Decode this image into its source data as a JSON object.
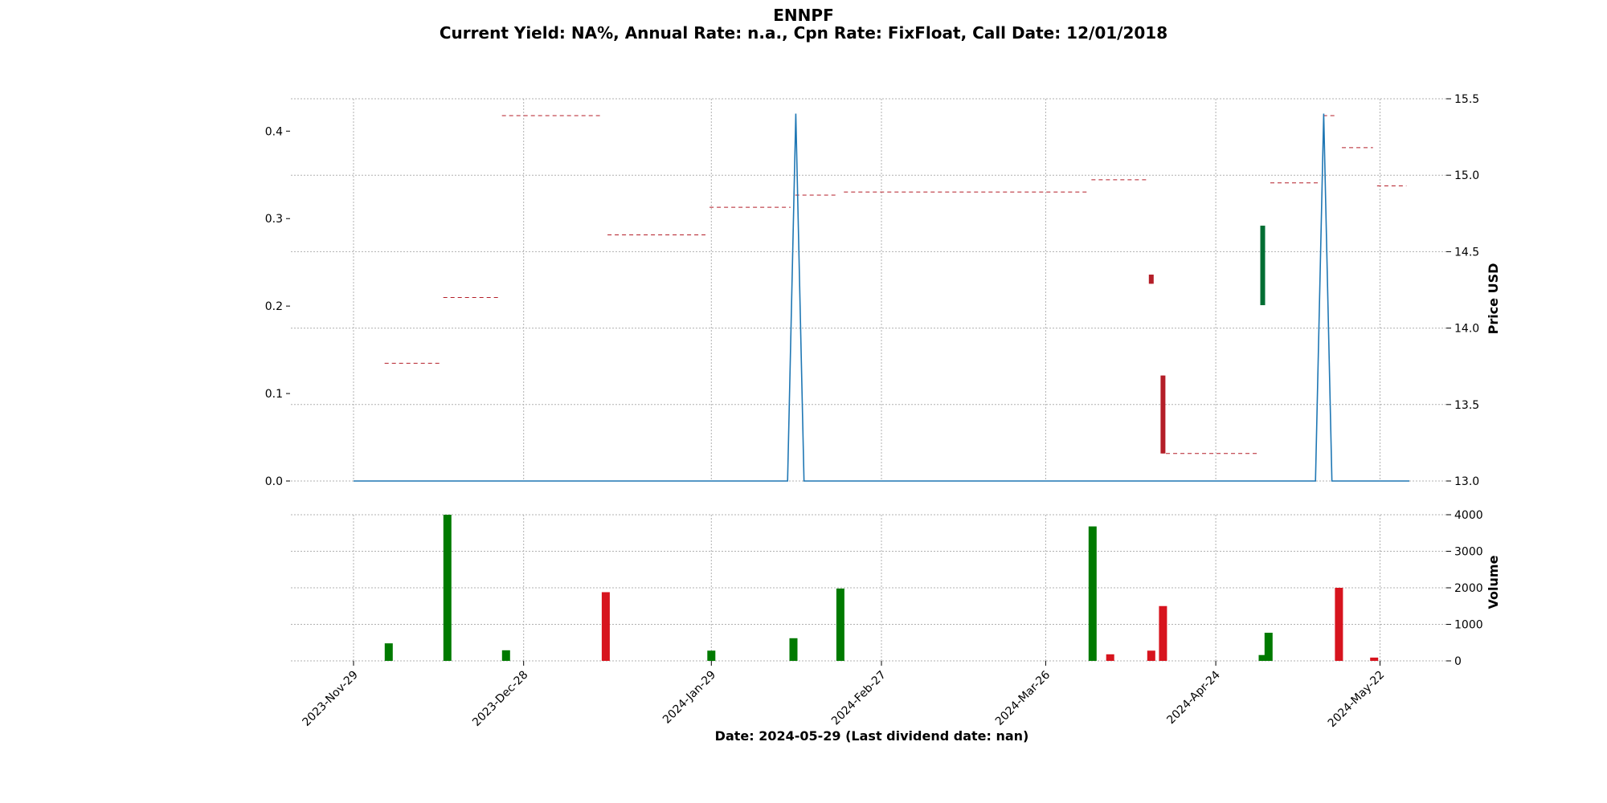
{
  "chart_data": {
    "type": "candlestick",
    "title": "ENNPF",
    "subtitle": "Current Yield: NA%, Annual Rate: n.a., Cpn Rate: FixFloat, Call Date: 12/01/2018",
    "xlabel": "Date: 2024-05-29   (Last dividend date: nan)",
    "x_ticks": [
      {
        "day": 0,
        "label": "2023-Nov-29"
      },
      {
        "day": 29,
        "label": "2023-Dec-28"
      },
      {
        "day": 61,
        "label": "2024-Jan-29"
      },
      {
        "day": 90,
        "label": "2024-Feb-27"
      },
      {
        "day": 118,
        "label": "2024-Mar-26"
      },
      {
        "day": 147,
        "label": "2024-Apr-24"
      },
      {
        "day": 175,
        "label": "2024-May-22"
      }
    ],
    "x_range": [
      -10.5,
      189
    ],
    "price_axis": {
      "label": "Price USD",
      "range": [
        13.0,
        15.5
      ],
      "ticks": [
        13.0,
        13.5,
        14.0,
        14.5,
        15.0,
        15.5
      ]
    },
    "dividend_axis": {
      "label": "",
      "range": [
        0.0,
        0.437
      ],
      "ticks": [
        0.0,
        0.1,
        0.2,
        0.3,
        0.4
      ]
    },
    "volume_axis": {
      "label": "Volume",
      "range": [
        0,
        4000
      ],
      "ticks": [
        0,
        1000,
        2000,
        3000,
        4000
      ]
    },
    "candles": [
      {
        "day": 6,
        "open": 13.77,
        "close": 13.77,
        "high": 13.77,
        "low": 13.77,
        "volume": 480,
        "dir": "up"
      },
      {
        "day": 16,
        "open": 14.2,
        "close": 14.2,
        "high": 14.2,
        "low": 14.2,
        "volume": 4000,
        "dir": "up"
      },
      {
        "day": 26,
        "open": 15.39,
        "close": 15.39,
        "high": 15.39,
        "low": 15.39,
        "volume": 290,
        "dir": "up"
      },
      {
        "day": 43,
        "open": 14.61,
        "close": 14.61,
        "high": 14.61,
        "low": 14.61,
        "volume": 1880,
        "dir": "down"
      },
      {
        "day": 61,
        "open": 14.79,
        "close": 14.79,
        "high": 14.79,
        "low": 14.79,
        "volume": 280,
        "dir": "up"
      },
      {
        "day": 75,
        "open": 14.87,
        "close": 14.87,
        "high": 14.87,
        "low": 14.87,
        "volume": 620,
        "dir": "up"
      },
      {
        "day": 83,
        "open": 14.89,
        "close": 14.89,
        "high": 14.94,
        "low": 14.87,
        "volume": 1980,
        "dir": "up"
      },
      {
        "day": 126,
        "open": 14.97,
        "close": 14.97,
        "high": 14.97,
        "low": 14.97,
        "volume": 3680,
        "dir": "up"
      },
      {
        "day": 129,
        "open": 14.97,
        "close": 14.97,
        "high": 14.97,
        "low": 14.97,
        "volume": 180,
        "dir": "down"
      },
      {
        "day": 136,
        "open": 14.35,
        "close": 14.29,
        "high": 14.35,
        "low": 14.29,
        "volume": 280,
        "dir": "down"
      },
      {
        "day": 138,
        "open": 13.69,
        "close": 13.18,
        "high": 13.69,
        "low": 13.18,
        "volume": 1500,
        "dir": "down"
      },
      {
        "day": 155,
        "open": 14.15,
        "close": 14.67,
        "high": 14.67,
        "low": 14.15,
        "volume": 160,
        "dir": "up"
      },
      {
        "day": 156,
        "open": 14.95,
        "close": 14.95,
        "high": 14.95,
        "low": 14.95,
        "volume": 770,
        "dir": "up"
      },
      {
        "day": 168,
        "open": 15.39,
        "close": 15.39,
        "high": 15.39,
        "low": 15.39,
        "volume": 2000,
        "dir": "down"
      },
      {
        "day": 174,
        "open": 14.93,
        "close": 14.93,
        "high": 14.93,
        "low": 14.93,
        "volume": 90,
        "dir": "down"
      }
    ],
    "price_levels": [
      {
        "from": 5.3,
        "to": 15,
        "value": 13.77
      },
      {
        "from": 15.3,
        "to": 25,
        "value": 14.2
      },
      {
        "from": 25.3,
        "to": 42,
        "value": 15.39
      },
      {
        "from": 43.3,
        "to": 60,
        "value": 14.61
      },
      {
        "from": 60.7,
        "to": 74.5,
        "value": 14.79
      },
      {
        "from": 75.3,
        "to": 82.5,
        "value": 14.87
      },
      {
        "from": 83.6,
        "to": 125.5,
        "value": 14.89
      },
      {
        "from": 125.8,
        "to": 135.5,
        "value": 14.97
      },
      {
        "from": 138.5,
        "to": 154.5,
        "value": 13.18
      },
      {
        "from": 156.3,
        "to": 164.5,
        "value": 14.95
      },
      {
        "from": 165.3,
        "to": 167.3,
        "value": 15.39
      },
      {
        "from": 168.5,
        "to": 173.8,
        "value": 15.18
      },
      {
        "from": 174.5,
        "to": 179.5,
        "value": 14.93
      }
    ],
    "dividend_line": {
      "days": [
        0,
        74,
        75.4,
        76.8,
        164,
        165.4,
        166.8,
        180
      ],
      "values": [
        0,
        0,
        0.42,
        0,
        0,
        0.42,
        0,
        0
      ]
    },
    "colors": {
      "up": "#006e33",
      "down": "#b41e28",
      "vol_up": "#007a00",
      "vol_down": "#d7141e",
      "dividend": "#1f77b4",
      "level": "#b41e28"
    }
  }
}
